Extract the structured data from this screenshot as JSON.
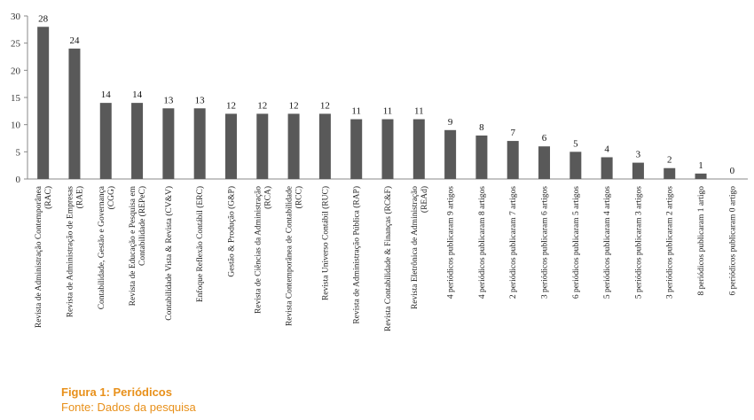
{
  "figure": {
    "title": "Figura 1: Periódicos",
    "source": "Fonte: Dados da pesquisa"
  },
  "colors": {
    "bar": "#595959",
    "axis": "#888888",
    "caption": "#E8901A"
  },
  "chart_data": {
    "type": "bar",
    "title": "",
    "xlabel": "",
    "ylabel": "",
    "ylim": [
      0,
      30
    ],
    "yticks": [
      0,
      5,
      10,
      15,
      20,
      25,
      30
    ],
    "grid": false,
    "legend": "none",
    "data_labels": true,
    "categories": [
      [
        "Revista de Administração Contemporânea",
        "(RAC)"
      ],
      [
        "Revista de Administração de Empresas",
        "(RAE)"
      ],
      [
        "Contabilidade, Gestão e Governança",
        "(CGG)"
      ],
      [
        "Revista de Educação e Pesquisa em",
        "Contabilidade (REPeC)"
      ],
      [
        "Contabilidade Vista & Revista (CV&V)"
      ],
      [
        "Enfoque Reflexão Contábil (ERC)"
      ],
      [
        "Gestão & Produção (G&P)"
      ],
      [
        "Revista de Ciências da Administração",
        "(RCA)"
      ],
      [
        "Revista Contemporânea de Contabilidade",
        "(RCC)"
      ],
      [
        "Revista Universo Contábil (RUC)"
      ],
      [
        "Revista de Administração Pública (RAP)"
      ],
      [
        "Revista Contabilidade & Finanças (RC&F)"
      ],
      [
        "Revista Eletrônica de Administração",
        "(REAd)"
      ],
      [
        "4 periódicos publicaram 9 artigos"
      ],
      [
        "4 periódicos publicaram 8 artigos"
      ],
      [
        "2 periódicos publicaram 7 artigos"
      ],
      [
        "3 periódicos publicaram 6 artigos"
      ],
      [
        "6 periódicos publicaram 5 artigos"
      ],
      [
        "5 periódicos publicaram 4 artigos"
      ],
      [
        "5 periódicos publicaram 3 artigos"
      ],
      [
        "3 periódicos publicaram 2 artigos"
      ],
      [
        "8 periódicos publicaram 1 artigo"
      ],
      [
        "6 periódicos publicaram 0 artigo"
      ]
    ],
    "values": [
      28,
      24,
      14,
      14,
      13,
      13,
      12,
      12,
      12,
      12,
      11,
      11,
      11,
      9,
      8,
      7,
      6,
      5,
      4,
      3,
      2,
      1,
      0
    ]
  }
}
